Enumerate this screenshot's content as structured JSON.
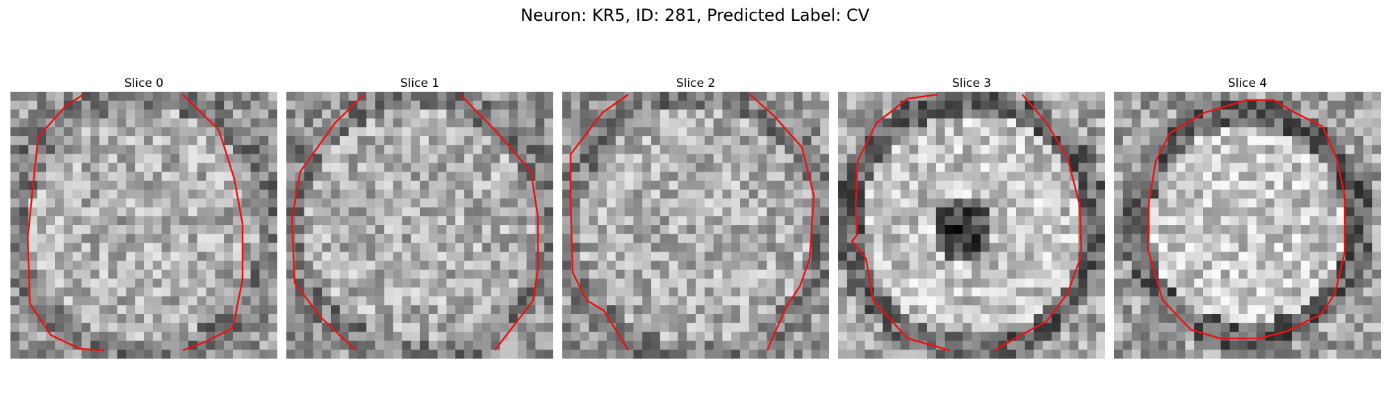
{
  "figure": {
    "title": "Neuron: KR5, ID: 281, Predicted Label: CV",
    "contour_color": "#ee1111"
  },
  "slices": [
    {
      "title": "Slice 0",
      "seed": 11,
      "mode": "plain"
    },
    {
      "title": "Slice 1",
      "seed": 23,
      "mode": "plain"
    },
    {
      "title": "Slice 2",
      "seed": 37,
      "mode": "plain"
    },
    {
      "title": "Slice 3",
      "seed": 51,
      "mode": "ring-dark-center"
    },
    {
      "title": "Slice 4",
      "seed": 67,
      "mode": "ring-bright"
    }
  ]
}
